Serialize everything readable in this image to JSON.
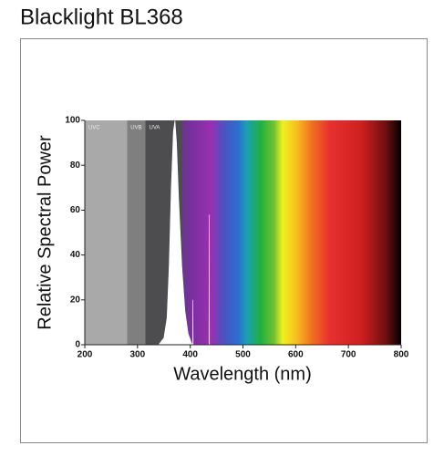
{
  "chart_data": {
    "type": "area",
    "title": "Blacklight BL368",
    "xlabel": "Wavelength (nm)",
    "ylabel": "Relative Spectral Power",
    "xlim": [
      200,
      800
    ],
    "xticks": [
      200,
      300,
      400,
      500,
      600,
      700,
      800
    ],
    "ylim": [
      0,
      100
    ],
    "yticks": [
      0,
      20,
      40,
      60,
      80,
      100
    ],
    "bands": [
      {
        "label": "UVC",
        "start": 200,
        "end": 280,
        "color": "#a9a9a9"
      },
      {
        "label": "UVB",
        "start": 280,
        "end": 315,
        "color": "#7f7f7f"
      },
      {
        "label": "UVA",
        "start": 315,
        "end": 385,
        "color": "#4d4d4f"
      }
    ],
    "series": [
      {
        "color": "#ffffff",
        "x": [
          330,
          340,
          350,
          356,
          360,
          364,
          368,
          371,
          374,
          378,
          384,
          390,
          396,
          402,
          404,
          404.5,
          405,
          405.5,
          406,
          420,
          435,
          435.5,
          436,
          436.5,
          437,
          450
        ],
        "values": [
          0,
          0,
          3,
          12,
          35,
          70,
          95,
          100,
          90,
          65,
          35,
          15,
          5,
          1,
          0,
          0,
          20,
          0,
          0,
          0,
          0,
          0,
          58,
          0,
          0,
          0
        ]
      }
    ]
  }
}
